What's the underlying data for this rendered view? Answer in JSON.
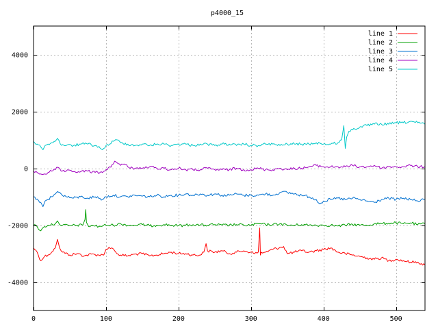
{
  "chart_data": {
    "type": "line",
    "title": "p4000_15",
    "xlabel": "",
    "ylabel": "",
    "xlim": [
      0,
      540
    ],
    "ylim": [
      -5000,
      5000
    ],
    "x_ticks": [
      0,
      100,
      200,
      300,
      400,
      500
    ],
    "y_ticks": [
      -4000,
      -2000,
      0,
      2000,
      4000
    ],
    "grid": true,
    "legend_position": "top-right",
    "series": [
      {
        "name": "line 1",
        "color": "#ff0000",
        "x": [
          0,
          5,
          10,
          15,
          20,
          25,
          30,
          33,
          36,
          40,
          50,
          60,
          70,
          80,
          90,
          97,
          100,
          104,
          108,
          112,
          115,
          120,
          130,
          140,
          150,
          160,
          170,
          180,
          190,
          200,
          210,
          220,
          230,
          235,
          238,
          240,
          250,
          260,
          270,
          280,
          290,
          300,
          305,
          310,
          312,
          313,
          314,
          316,
          320,
          330,
          340,
          345,
          350,
          360,
          370,
          380,
          390,
          400,
          410,
          420,
          430,
          440,
          450,
          460,
          470,
          480,
          490,
          500,
          510,
          520,
          530,
          540
        ],
        "y": [
          -2800,
          -2950,
          -3250,
          -3100,
          -3050,
          -2950,
          -2800,
          -2500,
          -2800,
          -2950,
          -3050,
          -3000,
          -3080,
          -3020,
          -3050,
          -3050,
          -2850,
          -2780,
          -2800,
          -2900,
          -3000,
          -3050,
          -3080,
          -3020,
          -3000,
          -3080,
          -3050,
          -3000,
          -2950,
          -3000,
          -3000,
          -3050,
          -3050,
          -2950,
          -2650,
          -2900,
          -2950,
          -2900,
          -3000,
          -2950,
          -2900,
          -2950,
          -3000,
          -2950,
          -2100,
          -3050,
          -2950,
          -2980,
          -2950,
          -2850,
          -2780,
          -2750,
          -3000,
          -2950,
          -2900,
          -2950,
          -2900,
          -2850,
          -2800,
          -2950,
          -3000,
          -3050,
          -3100,
          -3150,
          -3200,
          -3150,
          -3250,
          -3200,
          -3250,
          -3300,
          -3300,
          -3400
        ]
      },
      {
        "name": "line 2",
        "color": "#00a000",
        "x": [
          0,
          5,
          10,
          15,
          20,
          30,
          33,
          36,
          40,
          50,
          60,
          68,
          71,
          72,
          73,
          76,
          80,
          90,
          100,
          110,
          120,
          130,
          140,
          150,
          160,
          170,
          180,
          190,
          200,
          210,
          220,
          230,
          240,
          250,
          260,
          270,
          280,
          290,
          300,
          310,
          320,
          330,
          340,
          350,
          360,
          370,
          380,
          390,
          400,
          410,
          420,
          430,
          440,
          450,
          460,
          470,
          480,
          490,
          500,
          510,
          520,
          530,
          540
        ],
        "y": [
          -2000,
          -2050,
          -2200,
          -2050,
          -2000,
          -1950,
          -1850,
          -1980,
          -2000,
          -2020,
          -2000,
          -2000,
          -1800,
          -1450,
          -1900,
          -2050,
          -2000,
          -2050,
          -2000,
          -2000,
          -1950,
          -2000,
          -2000,
          -1980,
          -2020,
          -2000,
          -1980,
          -2000,
          -2020,
          -2000,
          -1980,
          -2000,
          -2000,
          -1980,
          -2000,
          -2000,
          -1980,
          -2000,
          -2000,
          -1950,
          -1980,
          -1980,
          -1950,
          -2000,
          -2000,
          -1980,
          -2000,
          -2000,
          -2000,
          -2000,
          -2030,
          -2000,
          -1970,
          -2000,
          -2000,
          -1950,
          -1950,
          -1930,
          -1920,
          -1950,
          -1920,
          -1980,
          -1950
        ]
      },
      {
        "name": "line 3",
        "color": "#0070d0",
        "x": [
          0,
          5,
          10,
          13,
          16,
          20,
          25,
          30,
          33,
          38,
          45,
          55,
          65,
          75,
          85,
          95,
          100,
          110,
          120,
          130,
          140,
          150,
          160,
          170,
          180,
          190,
          200,
          210,
          220,
          230,
          240,
          250,
          260,
          270,
          280,
          290,
          300,
          310,
          320,
          330,
          340,
          350,
          360,
          370,
          380,
          390,
          395,
          400,
          410,
          420,
          430,
          440,
          450,
          460,
          470,
          480,
          490,
          500,
          510,
          520,
          530,
          540
        ],
        "y": [
          -1000,
          -1080,
          -1200,
          -1350,
          -1150,
          -1100,
          -1000,
          -900,
          -820,
          -900,
          -1000,
          -1050,
          -1000,
          -1050,
          -1000,
          -1100,
          -1000,
          -950,
          -1000,
          -1000,
          -950,
          -980,
          -1000,
          -950,
          -1000,
          -950,
          -950,
          -900,
          -950,
          -900,
          -950,
          -900,
          -950,
          -950,
          -900,
          -950,
          -950,
          -950,
          -900,
          -950,
          -850,
          -850,
          -900,
          -950,
          -1000,
          -1100,
          -1250,
          -1150,
          -1100,
          -1050,
          -1100,
          -1050,
          -1100,
          -1150,
          -1200,
          -1100,
          -1050,
          -1100,
          -1050,
          -1100,
          -1150,
          -1100
        ]
      },
      {
        "name": "line 4",
        "color": "#a000c0",
        "x": [
          0,
          5,
          10,
          15,
          20,
          25,
          30,
          34,
          38,
          45,
          55,
          65,
          75,
          85,
          95,
          100,
          105,
          110,
          112,
          115,
          120,
          125,
          130,
          140,
          150,
          160,
          170,
          180,
          190,
          200,
          210,
          220,
          230,
          240,
          250,
          260,
          270,
          280,
          290,
          300,
          310,
          320,
          330,
          340,
          350,
          360,
          370,
          380,
          390,
          400,
          410,
          420,
          430,
          440,
          450,
          460,
          470,
          480,
          490,
          500,
          510,
          520,
          530,
          540
        ],
        "y": [
          -100,
          -150,
          -200,
          -200,
          -150,
          -100,
          -50,
          30,
          -100,
          -100,
          -120,
          -120,
          -100,
          -150,
          -150,
          -50,
          50,
          150,
          250,
          200,
          100,
          150,
          50,
          0,
          0,
          50,
          0,
          0,
          -50,
          0,
          -50,
          -50,
          -50,
          0,
          -50,
          -50,
          -50,
          0,
          -50,
          -50,
          0,
          -50,
          -50,
          0,
          -50,
          0,
          0,
          50,
          100,
          50,
          50,
          50,
          50,
          100,
          50,
          50,
          100,
          0,
          50,
          50,
          50,
          100,
          50,
          50
        ]
      },
      {
        "name": "line 5",
        "color": "#00c8c8",
        "x": [
          0,
          5,
          10,
          13,
          16,
          20,
          25,
          30,
          33,
          37,
          45,
          55,
          65,
          75,
          85,
          92,
          95,
          100,
          105,
          110,
          115,
          120,
          130,
          140,
          150,
          160,
          170,
          180,
          190,
          200,
          210,
          220,
          230,
          240,
          250,
          260,
          270,
          280,
          290,
          300,
          310,
          320,
          330,
          340,
          350,
          360,
          370,
          380,
          390,
          400,
          410,
          420,
          425,
          428,
          430,
          432,
          435,
          440,
          450,
          460,
          470,
          480,
          490,
          500,
          510,
          520,
          530,
          540
        ],
        "y": [
          950,
          850,
          750,
          650,
          800,
          850,
          900,
          950,
          1050,
          850,
          800,
          800,
          850,
          850,
          800,
          700,
          650,
          800,
          850,
          950,
          1000,
          900,
          850,
          800,
          850,
          800,
          850,
          850,
          800,
          850,
          850,
          800,
          850,
          850,
          800,
          850,
          850,
          800,
          850,
          800,
          800,
          850,
          850,
          800,
          850,
          850,
          850,
          850,
          900,
          850,
          850,
          900,
          1000,
          1500,
          700,
          1100,
          1300,
          1350,
          1450,
          1500,
          1550,
          1550,
          1550,
          1600,
          1600,
          1650,
          1600,
          1550
        ]
      }
    ]
  }
}
